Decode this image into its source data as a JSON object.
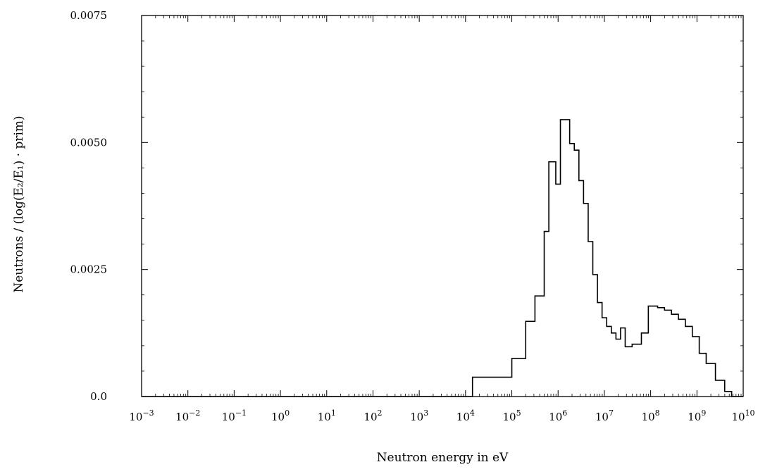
{
  "chart_data": {
    "type": "line",
    "step": true,
    "xlabel": "Neutron energy in eV",
    "ylabel": "Neutrons / (log(E₂/E₁) · prim)",
    "x_scale": "log",
    "xlim_exponents": [
      -3,
      10
    ],
    "xlim": [
      0.001,
      10000000000
    ],
    "ylim": [
      0,
      0.0075
    ],
    "x_ticks": [
      {
        "base": "10",
        "exp": "−3",
        "value": -3
      },
      {
        "base": "10",
        "exp": "−2",
        "value": -2
      },
      {
        "base": "10",
        "exp": "−1",
        "value": -1
      },
      {
        "base": "10",
        "exp": "0",
        "value": 0
      },
      {
        "base": "10",
        "exp": "1",
        "value": 1
      },
      {
        "base": "10",
        "exp": "2",
        "value": 2
      },
      {
        "base": "10",
        "exp": "3",
        "value": 3
      },
      {
        "base": "10",
        "exp": "4",
        "value": 4
      },
      {
        "base": "10",
        "exp": "5",
        "value": 5
      },
      {
        "base": "10",
        "exp": "6",
        "value": 6
      },
      {
        "base": "10",
        "exp": "7",
        "value": 7
      },
      {
        "base": "10",
        "exp": "8",
        "value": 8
      },
      {
        "base": "10",
        "exp": "9",
        "value": 9
      },
      {
        "base": "10",
        "exp": "10",
        "value": 10
      }
    ],
    "y_ticks": [
      {
        "label": "0.0",
        "value": 0
      },
      {
        "label": "0.0025",
        "value": 0.0025
      },
      {
        "label": "0.0050",
        "value": 0.005
      },
      {
        "label": "0.0075",
        "value": 0.0075
      }
    ],
    "series": [
      {
        "color": "#000000",
        "bin_edges_log10": [
          -3,
          4.15,
          5,
          5.3,
          5.5,
          5.7,
          5.8,
          5.95,
          6.05,
          6.25,
          6.35,
          6.45,
          6.55,
          6.65,
          6.75,
          6.85,
          6.95,
          7.05,
          7.15,
          7.25,
          7.35,
          7.45,
          7.6,
          7.8,
          7.95,
          8.15,
          8.3,
          8.45,
          8.6,
          8.75,
          8.9,
          9.05,
          9.2,
          9.4,
          9.6,
          9.75,
          10
        ],
        "values": [
          0,
          0.00038,
          0.00075,
          0.00148,
          0.00198,
          0.00325,
          0.00462,
          0.00418,
          0.00545,
          0.00498,
          0.00485,
          0.00425,
          0.0038,
          0.00305,
          0.0024,
          0.00185,
          0.00155,
          0.00138,
          0.00125,
          0.00113,
          0.00135,
          0.00098,
          0.00103,
          0.00125,
          0.00178,
          0.00175,
          0.0017,
          0.00162,
          0.00152,
          0.00138,
          0.00118,
          0.00085,
          0.00065,
          0.00032,
          0.0001,
          0
        ]
      }
    ]
  }
}
